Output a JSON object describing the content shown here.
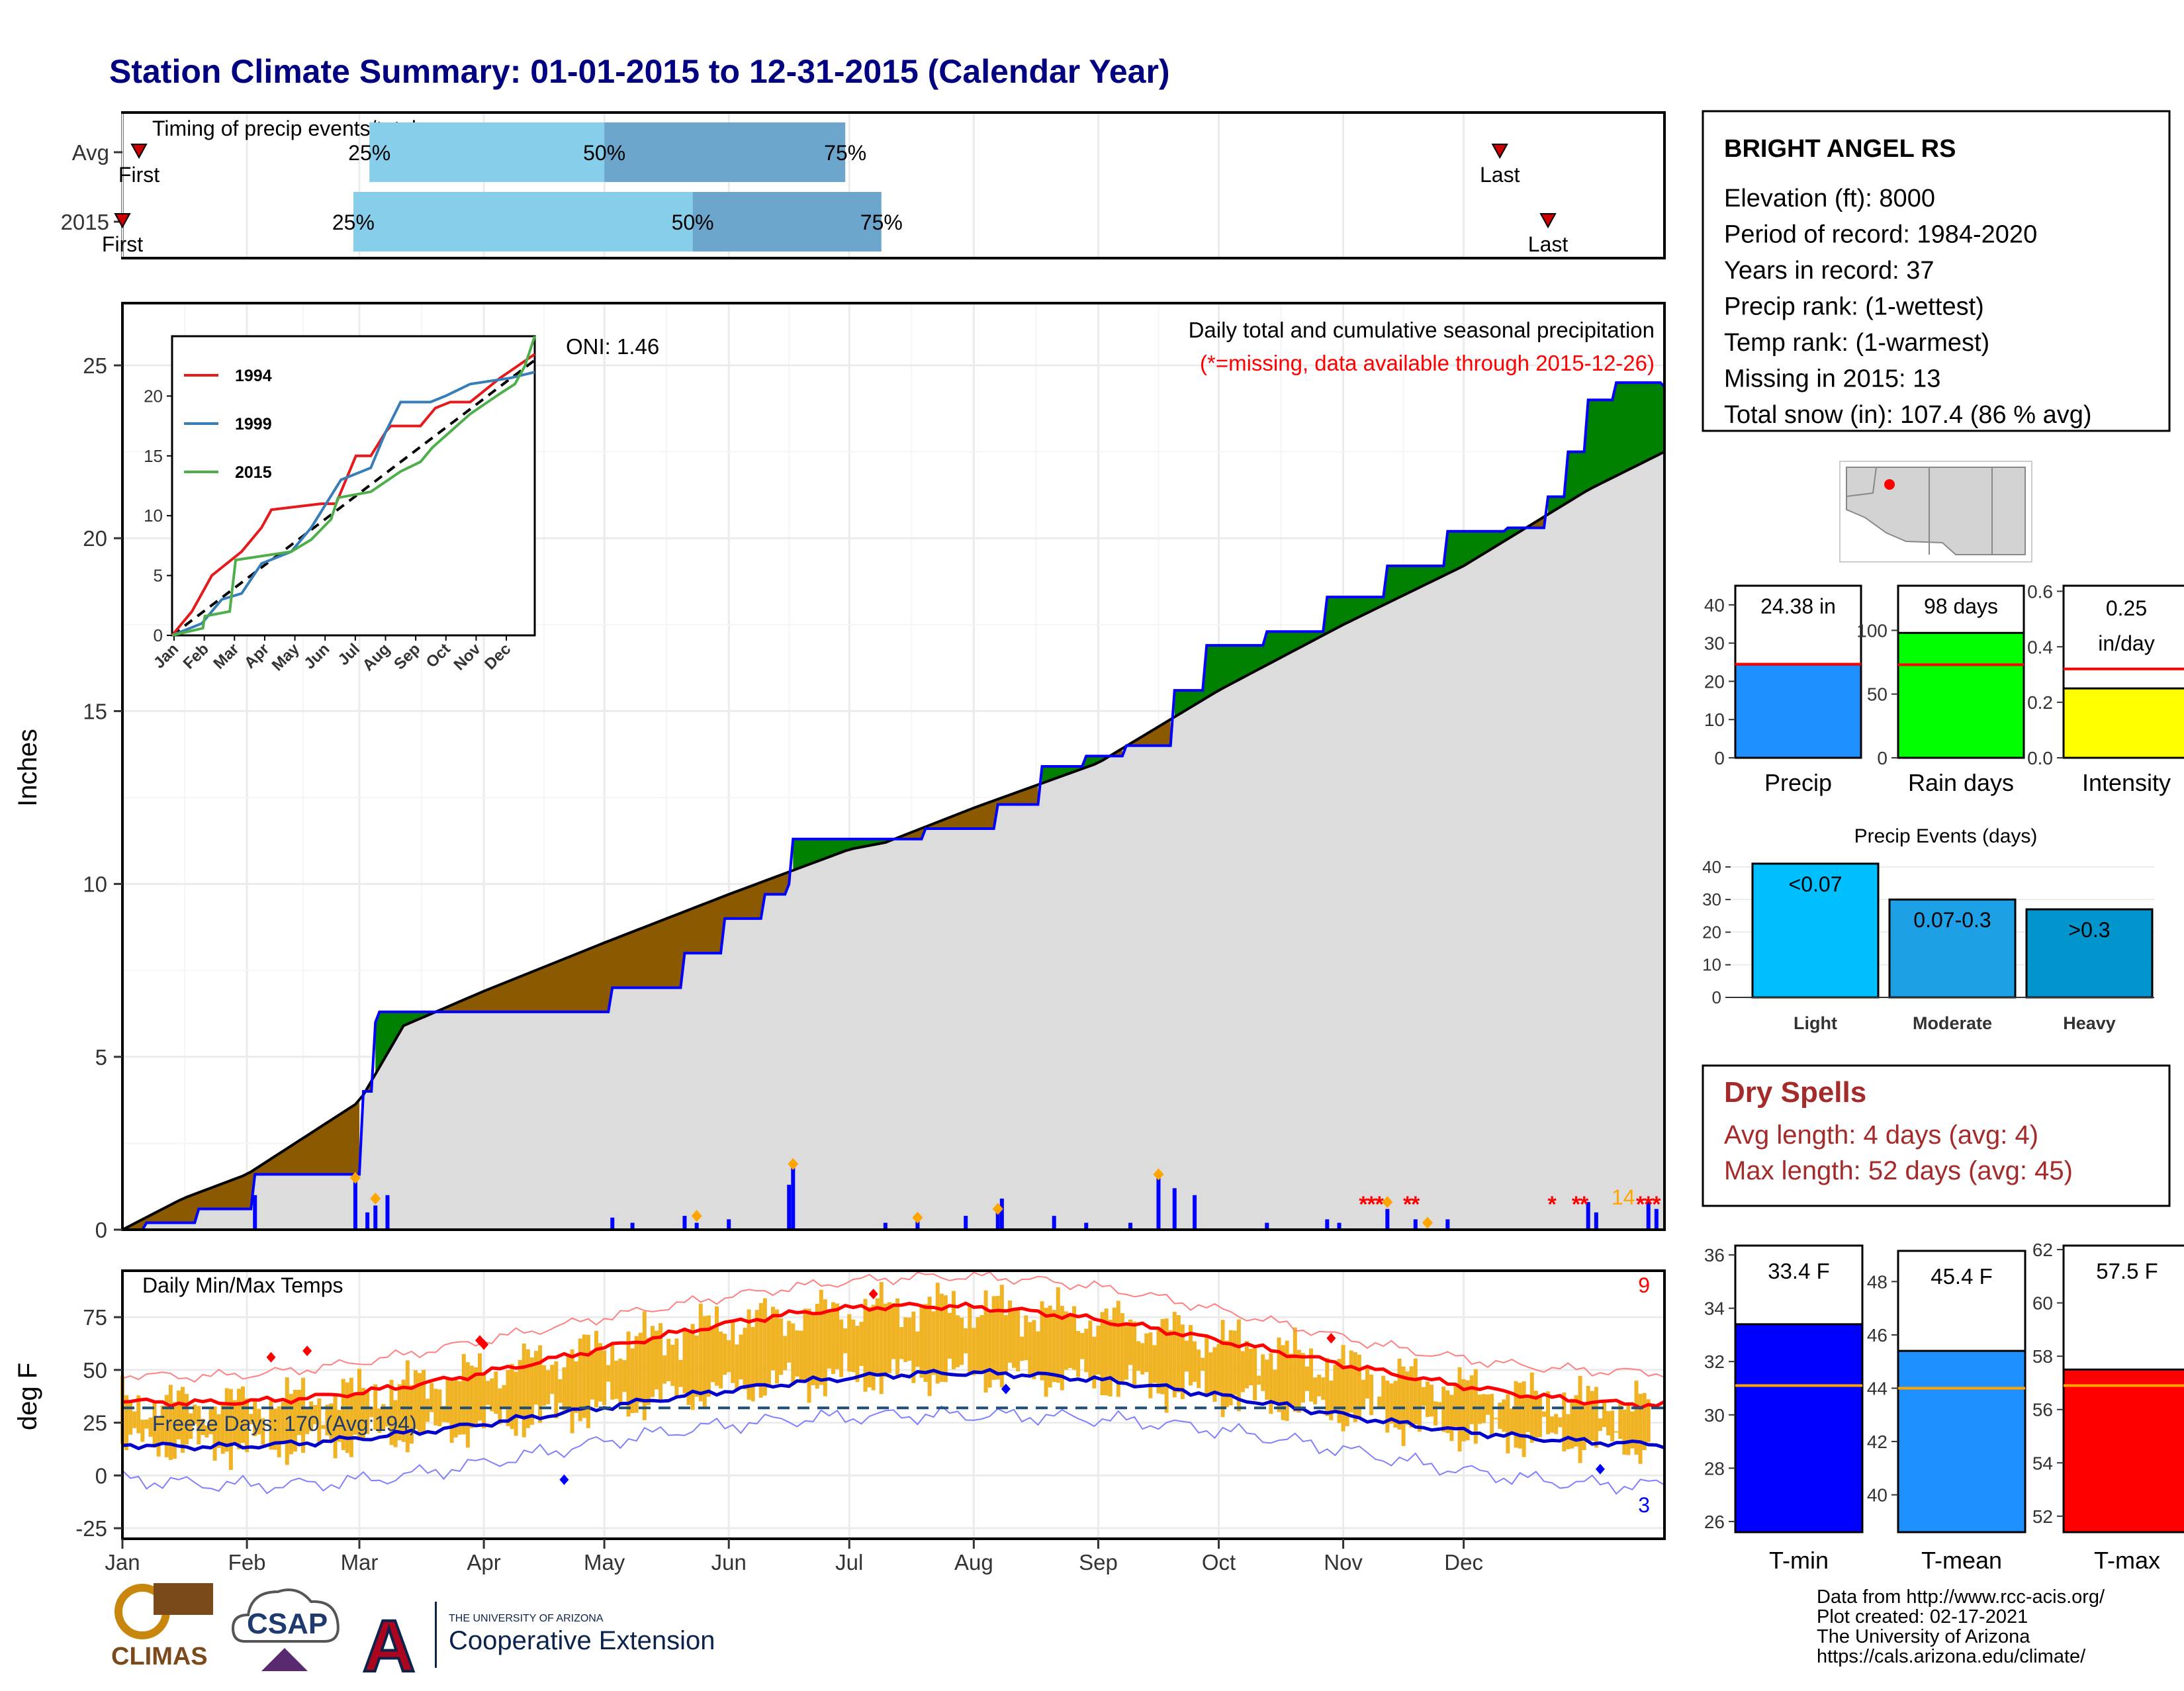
{
  "title": "Station Climate Summary: 01-01-2015 to 12-31-2015 (Calendar Year)",
  "timing_panel": {
    "label": "Timing of precip events/totals",
    "rows": [
      {
        "name": "Avg",
        "first": 0.5,
        "p25": 61.5,
        "p50": 120.0,
        "p75": 180.0,
        "last": 343.0
      },
      {
        "name": "2015",
        "first": 0.0,
        "p25": 57.5,
        "p50": 142.0,
        "p75": 189.0,
        "last": 355.0
      }
    ],
    "labels": {
      "first": "First",
      "last": "Last",
      "p25": "25%",
      "p50": "50%",
      "p75": "75%"
    }
  },
  "precip_panel": {
    "ylabel": "Inches",
    "title": "Daily total and cumulative seasonal precipitation",
    "missing_note": "(*=missing, data available through 2015-12-26)",
    "oni": "ONI: 1.46",
    "count_label": "14",
    "yticks": [
      "0",
      "5",
      "10",
      "15",
      "20",
      "25"
    ]
  },
  "inset": {
    "xticks": [
      "Jan",
      "Feb",
      "Mar",
      "Apr",
      "May",
      "Jun",
      "Jul",
      "Aug",
      "Sep",
      "Oct",
      "Nov",
      "Dec"
    ],
    "yticks": [
      "0",
      "5",
      "10",
      "15",
      "20"
    ],
    "legend": [
      {
        "name": "1994",
        "color": "#e41a1c"
      },
      {
        "name": "1999",
        "color": "#377eb8"
      },
      {
        "name": "2015",
        "color": "#4daf4a"
      }
    ]
  },
  "temp_panel": {
    "ylabel": "deg F",
    "title": "Daily Min/Max Temps",
    "freeze_label": "Freeze Days: 170 (Avg:194)",
    "record_high_count": "9",
    "record_low_count": "3",
    "yticks": [
      "-25",
      "0",
      "25",
      "50",
      "75"
    ]
  },
  "months": [
    "Jan",
    "Feb",
    "Mar",
    "Apr",
    "May",
    "Jun",
    "Jul",
    "Aug",
    "Sep",
    "Oct",
    "Nov",
    "Dec"
  ],
  "station": {
    "name": "BRIGHT ANGEL RS",
    "lines": [
      "Elevation (ft): 8000",
      "Period of record: 1984-2020",
      "Years in record: 37",
      "Precip rank:  (1-wettest)",
      "Temp rank:  (1-warmest)",
      "Missing in 2015: 13",
      "Total snow (in): 107.4 (86 % avg)"
    ]
  },
  "summary_bars": [
    {
      "label": "Precip",
      "value_label": "24.38 in",
      "value": 24.38,
      "avg": 24.5,
      "ylim": [
        0,
        45
      ],
      "yticks": [
        "0",
        "10",
        "20",
        "30",
        "40"
      ],
      "color": "#1e90ff"
    },
    {
      "label": "Rain days",
      "value_label": "98 days",
      "value": 98,
      "avg": 73,
      "ylim": [
        0,
        135
      ],
      "yticks": [
        "0",
        "50",
        "100"
      ],
      "color": "#00ff00"
    },
    {
      "label": "Intensity",
      "value_label_1": "0.25",
      "value_label_2": "in/day",
      "value": 0.25,
      "avg": 0.32,
      "ylim": [
        0,
        0.62
      ],
      "yticks": [
        "0.0",
        "0.2",
        "0.4",
        "0.6"
      ],
      "color": "#ffff00"
    }
  ],
  "precip_events": {
    "title": "Precip Events (days)",
    "categories": [
      "Light",
      "Moderate",
      "Heavy"
    ],
    "bar_labels": [
      "<0.07",
      "0.07-0.3",
      ">0.3"
    ],
    "values": [
      41,
      30,
      27
    ],
    "ylim": [
      0,
      42
    ],
    "yticks": [
      "0",
      "10",
      "20",
      "30",
      "40"
    ],
    "colors": [
      "#00bfff",
      "#1ea0e6",
      "#0095cc"
    ]
  },
  "dry_spells": {
    "title": "Dry Spells",
    "avg_line": "Avg length: 4 days (avg: 4)",
    "max_line": "Max length: 52 days (avg: 45)"
  },
  "temp_bars": [
    {
      "label": "T-min",
      "value_label": "33.4 F",
      "value": 33.4,
      "avg": 31.1,
      "ylim": [
        25.6,
        36.4
      ],
      "yticks": [
        "26",
        "28",
        "30",
        "32",
        "34",
        "36"
      ],
      "color": "#0000ff"
    },
    {
      "label": "T-mean",
      "value_label": "45.4 F",
      "value": 45.4,
      "avg": 44.0,
      "ylim": [
        38.6,
        49.4
      ],
      "yticks": [
        "40",
        "42",
        "44",
        "46",
        "48"
      ],
      "color": "#1e90ff"
    },
    {
      "label": "T-max",
      "value_label": "57.5 F",
      "value": 57.5,
      "avg": 56.9,
      "ylim": [
        51.4,
        62.2
      ],
      "yticks": [
        "52",
        "54",
        "56",
        "58",
        "60",
        "62"
      ],
      "color": "#ff0000"
    }
  ],
  "footer": {
    "lines": [
      "Data from http://www.rcc-acis.org/",
      "Plot created: 02-17-2021",
      "The University of Arizona",
      "https://cals.arizona.edu/climate/"
    ],
    "logo_climas": "CLIMAS",
    "logo_csap": "CSAP",
    "logo_ua_small": "THE UNIVERSITY OF ARIZONA",
    "logo_ua_big": "Cooperative Extension"
  },
  "chart_data": {
    "type": "area",
    "series": [
      {
        "name": "2015",
        "points": [
          [
            0,
            0
          ],
          [
            6,
            0.2
          ],
          [
            19,
            0.6
          ],
          [
            31,
            0.6
          ],
          [
            32,
            0.6
          ],
          [
            33,
            1.6
          ],
          [
            57,
            1.6
          ],
          [
            60,
            4
          ],
          [
            63,
            6
          ],
          [
            64,
            6.3
          ],
          [
            90,
            6.3
          ],
          [
            111,
            6.3
          ],
          [
            122,
            7.0
          ],
          [
            140,
            8.0
          ],
          [
            150,
            9.0
          ],
          [
            160,
            9.7
          ],
          [
            166,
            10.0
          ],
          [
            167,
            11.3
          ],
          [
            200,
            11.6
          ],
          [
            218,
            12.3
          ],
          [
            229,
            13.4
          ],
          [
            240,
            13.7
          ],
          [
            250,
            14.0
          ],
          [
            262,
            15.6
          ],
          [
            270,
            16.9
          ],
          [
            285,
            17.3
          ],
          [
            300,
            18.3
          ],
          [
            315,
            19.2
          ],
          [
            330,
            20.2
          ],
          [
            345,
            20.3
          ],
          [
            355,
            21.2
          ],
          [
            360,
            22.5
          ],
          [
            365,
            24.0
          ],
          [
            372,
            24.5
          ],
          [
            384,
            24.38
          ]
        ]
      },
      {
        "name": "Avg",
        "points": [
          [
            0,
            0
          ],
          [
            15,
            0.9
          ],
          [
            31,
            1.6
          ],
          [
            59,
            3.7
          ],
          [
            70,
            5.9
          ],
          [
            90,
            6.9
          ],
          [
            120,
            8.3
          ],
          [
            151,
            9.7
          ],
          [
            181,
            11.0
          ],
          [
            190,
            11.2
          ],
          [
            212,
            12.2
          ],
          [
            243,
            13.5
          ],
          [
            273,
            15.6
          ],
          [
            304,
            17.5
          ],
          [
            334,
            19.2
          ],
          [
            365,
            21.4
          ],
          [
            384,
            22.5
          ]
        ]
      }
    ],
    "xlabel": "",
    "ylabel": "Inches",
    "ylim": [
      0,
      26.5
    ],
    "xlim": [
      0,
      384
    ]
  }
}
